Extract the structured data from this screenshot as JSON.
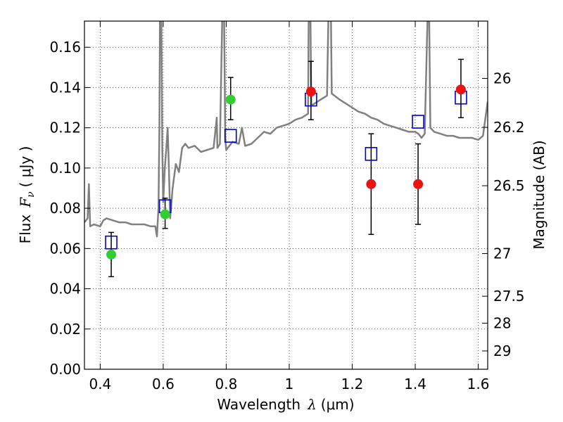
{
  "chart_data": {
    "type": "scatter",
    "xlabel": "Wavelength",
    "xlabel_symbol": "λ",
    "xlabel_unit": "(μm)",
    "ylabel": "Flux",
    "ylabel_symbol": "F",
    "ylabel_subscript": "ν",
    "ylabel_unit": "( μJy )",
    "y2label": "Magnitude (AB)",
    "xlim": [
      0.35,
      1.63
    ],
    "ylim": [
      0.0,
      0.173
    ],
    "grid": true,
    "x_ticks": [
      0.4,
      0.6,
      0.8,
      1.0,
      1.2,
      1.4,
      1.6
    ],
    "x_tick_labels": [
      "0.4",
      "0.6",
      "0.8",
      "1",
      "1.2",
      "1.4",
      "1.6"
    ],
    "y_ticks": [
      0.0,
      0.02,
      0.04,
      0.06,
      0.08,
      0.1,
      0.12,
      0.14,
      0.16
    ],
    "y_tick_labels": [
      "0.00",
      "0.02",
      "0.04",
      "0.06",
      "0.08",
      "0.10",
      "0.12",
      "0.14",
      "0.16"
    ],
    "y2_ticks": [
      {
        "label": "26",
        "flux": 0.1445
      },
      {
        "label": "26.2",
        "flux": 0.1202
      },
      {
        "label": "26.5",
        "flux": 0.0912
      },
      {
        "label": "27",
        "flux": 0.0575
      },
      {
        "label": "27.5",
        "flux": 0.0363
      },
      {
        "label": "28",
        "flux": 0.0229
      },
      {
        "label": "29",
        "flux": 0.0091
      }
    ],
    "colors": {
      "template": "#808080",
      "model": "#0000cc",
      "detection": "#33cc33",
      "upper": "#ee1111",
      "errorbar": "#000000",
      "grid": "#555555"
    },
    "series": [
      {
        "name": "template_spectrum",
        "type": "line",
        "points": [
          [
            0.35,
            0.073
          ],
          [
            0.36,
            0.075
          ],
          [
            0.364,
            0.092
          ],
          [
            0.368,
            0.071
          ],
          [
            0.38,
            0.072
          ],
          [
            0.4,
            0.071
          ],
          [
            0.41,
            0.074
          ],
          [
            0.42,
            0.075
          ],
          [
            0.44,
            0.074
          ],
          [
            0.46,
            0.073
          ],
          [
            0.48,
            0.073
          ],
          [
            0.5,
            0.072
          ],
          [
            0.52,
            0.072
          ],
          [
            0.54,
            0.072
          ],
          [
            0.56,
            0.071
          ],
          [
            0.575,
            0.071
          ],
          [
            0.58,
            0.066
          ],
          [
            0.585,
            0.08
          ],
          [
            0.588,
            0.12
          ],
          [
            0.59,
            0.18
          ],
          [
            0.594,
            0.18
          ],
          [
            0.597,
            0.11
          ],
          [
            0.6,
            0.083
          ],
          [
            0.605,
            0.1
          ],
          [
            0.61,
            0.11
          ],
          [
            0.614,
            0.12
          ],
          [
            0.618,
            0.1
          ],
          [
            0.622,
            0.075
          ],
          [
            0.63,
            0.09
          ],
          [
            0.64,
            0.102
          ],
          [
            0.65,
            0.098
          ],
          [
            0.66,
            0.11
          ],
          [
            0.67,
            0.112
          ],
          [
            0.68,
            0.11
          ],
          [
            0.7,
            0.111
          ],
          [
            0.72,
            0.108
          ],
          [
            0.74,
            0.109
          ],
          [
            0.76,
            0.11
          ],
          [
            0.77,
            0.125
          ],
          [
            0.772,
            0.11
          ],
          [
            0.78,
            0.112
          ],
          [
            0.788,
            0.18
          ],
          [
            0.793,
            0.18
          ],
          [
            0.797,
            0.115
          ],
          [
            0.8,
            0.109
          ],
          [
            0.82,
            0.113
          ],
          [
            0.84,
            0.112
          ],
          [
            0.85,
            0.12
          ],
          [
            0.86,
            0.111
          ],
          [
            0.88,
            0.112
          ],
          [
            0.9,
            0.115
          ],
          [
            0.92,
            0.118
          ],
          [
            0.94,
            0.117
          ],
          [
            0.96,
            0.12
          ],
          [
            0.98,
            0.121
          ],
          [
            1.0,
            0.122
          ],
          [
            1.02,
            0.124
          ],
          [
            1.04,
            0.125
          ],
          [
            1.06,
            0.127
          ],
          [
            1.062,
            0.18
          ],
          [
            1.067,
            0.18
          ],
          [
            1.07,
            0.131
          ],
          [
            1.08,
            0.132
          ],
          [
            1.1,
            0.134
          ],
          [
            1.12,
            0.136
          ],
          [
            1.125,
            0.18
          ],
          [
            1.132,
            0.18
          ],
          [
            1.135,
            0.137
          ],
          [
            1.16,
            0.134
          ],
          [
            1.18,
            0.132
          ],
          [
            1.2,
            0.13
          ],
          [
            1.22,
            0.128
          ],
          [
            1.24,
            0.127
          ],
          [
            1.26,
            0.125
          ],
          [
            1.28,
            0.124
          ],
          [
            1.3,
            0.122
          ],
          [
            1.32,
            0.121
          ],
          [
            1.34,
            0.12
          ],
          [
            1.36,
            0.119
          ],
          [
            1.38,
            0.118
          ],
          [
            1.4,
            0.118
          ],
          [
            1.41,
            0.117
          ],
          [
            1.42,
            0.115
          ],
          [
            1.43,
            0.117
          ],
          [
            1.44,
            0.18
          ],
          [
            1.444,
            0.18
          ],
          [
            1.448,
            0.12
          ],
          [
            1.46,
            0.118
          ],
          [
            1.48,
            0.117
          ],
          [
            1.5,
            0.116
          ],
          [
            1.52,
            0.116
          ],
          [
            1.54,
            0.115
          ],
          [
            1.56,
            0.115
          ],
          [
            1.58,
            0.115
          ],
          [
            1.6,
            0.114
          ],
          [
            1.615,
            0.116
          ],
          [
            1.63,
            0.133
          ]
        ]
      },
      {
        "name": "model_photometry",
        "type": "scatter",
        "marker": "open-square",
        "points": [
          [
            0.435,
            0.063
          ],
          [
            0.606,
            0.081
          ],
          [
            0.814,
            0.116
          ],
          [
            1.069,
            0.134
          ],
          [
            1.26,
            0.107
          ],
          [
            1.409,
            0.123
          ],
          [
            1.545,
            0.135
          ]
        ]
      },
      {
        "name": "detections",
        "type": "scatter",
        "marker": "filled-circle",
        "points": [
          {
            "x": 0.435,
            "y": 0.057,
            "ylo": 0.046,
            "yhi": 0.068
          },
          {
            "x": 0.606,
            "y": 0.077,
            "ylo": 0.07,
            "yhi": 0.085
          },
          {
            "x": 0.814,
            "y": 0.134,
            "ylo": 0.124,
            "yhi": 0.145
          }
        ]
      },
      {
        "name": "low_significance",
        "type": "scatter",
        "marker": "filled-circle",
        "points": [
          {
            "x": 1.069,
            "y": 0.138,
            "ylo": 0.124,
            "yhi": 0.153
          },
          {
            "x": 1.26,
            "y": 0.092,
            "ylo": 0.067,
            "yhi": 0.117
          },
          {
            "x": 1.409,
            "y": 0.092,
            "ylo": 0.072,
            "yhi": 0.112
          },
          {
            "x": 1.545,
            "y": 0.139,
            "ylo": 0.125,
            "yhi": 0.154
          }
        ]
      }
    ]
  }
}
